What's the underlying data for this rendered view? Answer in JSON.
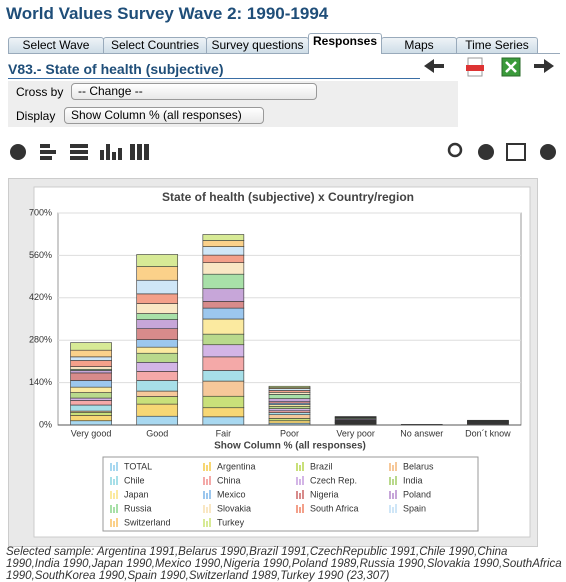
{
  "header": {
    "title": "World Values Survey Wave 2: 1990-1994"
  },
  "tabs": [
    "Select Wave",
    "Select Countries",
    "Survey questions",
    "Responses",
    "Maps",
    "Time Series"
  ],
  "question": {
    "title": "V83.- State of health (subjective)"
  },
  "controls": {
    "cross_by": {
      "label": "Cross by",
      "value": "-- Change --"
    },
    "display": {
      "label": "Display",
      "value": "Show Column % (all responses)"
    }
  },
  "chart_data": {
    "type": "bar",
    "stacked": true,
    "title": "State of health (subjective) x Country/region",
    "x_label": "Show Column % (all responses)",
    "categories": [
      "Very good",
      "Good",
      "Fair",
      "Poor",
      "Very poor",
      "No answer",
      "Don´t know"
    ],
    "ylim": [
      0,
      700
    ],
    "yticks": [
      {
        "value": 0,
        "label": "0%"
      },
      {
        "value": 140,
        "label": "140%"
      },
      {
        "value": 280,
        "label": "280%"
      },
      {
        "value": 420,
        "label": "420%"
      },
      {
        "value": 560,
        "label": "560%"
      },
      {
        "value": 700,
        "label": "700%"
      }
    ],
    "grid": true,
    "legend": "bottom",
    "series": [
      {
        "name": "TOTAL",
        "color": "#a8d8f0",
        "values": [
          14,
          29,
          27,
          6,
          1,
          0.3,
          0.7
        ]
      },
      {
        "name": "Argentina",
        "color": "#f7d774",
        "values": [
          18,
          40,
          30,
          8,
          2,
          0,
          1
        ]
      },
      {
        "name": "Brazil",
        "color": "#c9e07a",
        "values": [
          10,
          25,
          38,
          8,
          2,
          0,
          1
        ]
      },
      {
        "name": "Belarus",
        "color": "#f6c89a",
        "values": [
          4,
          18,
          50,
          12,
          2,
          0,
          1
        ]
      },
      {
        "name": "Chile",
        "color": "#a7dfe8",
        "values": [
          20,
          35,
          35,
          7,
          1,
          0,
          1
        ]
      },
      {
        "name": "China",
        "color": "#f4a9a8",
        "values": [
          15,
          30,
          45,
          6,
          1,
          0,
          2
        ]
      },
      {
        "name": "Czech Rep.",
        "color": "#d3b5e6",
        "values": [
          8,
          30,
          40,
          7,
          1,
          0,
          1
        ]
      },
      {
        "name": "India",
        "color": "#b9d98c",
        "values": [
          18,
          30,
          35,
          7,
          2,
          1,
          1
        ]
      },
      {
        "name": "Japan",
        "color": "#fbeaa0",
        "values": [
          18,
          20,
          50,
          6,
          1,
          0,
          1
        ]
      },
      {
        "name": "Mexico",
        "color": "#9cc7ee",
        "values": [
          22,
          25,
          36,
          5,
          1,
          0,
          1
        ]
      },
      {
        "name": "Nigeria",
        "color": "#d88b8b",
        "values": [
          25,
          36,
          22,
          5,
          2,
          0,
          1
        ]
      },
      {
        "name": "Poland",
        "color": "#c7a6d9",
        "values": [
          8,
          30,
          42,
          10,
          3,
          0,
          1
        ]
      },
      {
        "name": "Russia",
        "color": "#a8e0a8",
        "values": [
          4,
          20,
          48,
          14,
          3,
          0,
          1
        ]
      },
      {
        "name": "Slovakia",
        "color": "#f9e7c4",
        "values": [
          9,
          33,
          38,
          7,
          1,
          0,
          1
        ]
      },
      {
        "name": "South Africa",
        "color": "#f3a08a",
        "values": [
          20,
          32,
          25,
          6,
          2,
          1,
          0
        ]
      },
      {
        "name": "Spain",
        "color": "#cfe6f7",
        "values": [
          12,
          45,
          28,
          6,
          1,
          0,
          0
        ]
      },
      {
        "name": "Switzerland",
        "color": "#fbd18a",
        "values": [
          22,
          45,
          20,
          3,
          1,
          0,
          0
        ]
      },
      {
        "name": "Turkey",
        "color": "#d7ea96",
        "values": [
          25,
          40,
          20,
          5,
          1,
          0,
          1
        ]
      }
    ]
  },
  "footer": "Selected sample: Argentina 1991,Belarus 1990,Brazil 1991,CzechRepublic 1991,Chile 1990,China 1990,India 1990,Japan 1990,Mexico 1990,Nigeria 1990,Poland 1989,Russia 1990,Slovakia 1990,SouthAfrica 1990,SouthKorea 1990,Spain 1990,Switzerland 1989,Turkey 1990 (23,307)"
}
